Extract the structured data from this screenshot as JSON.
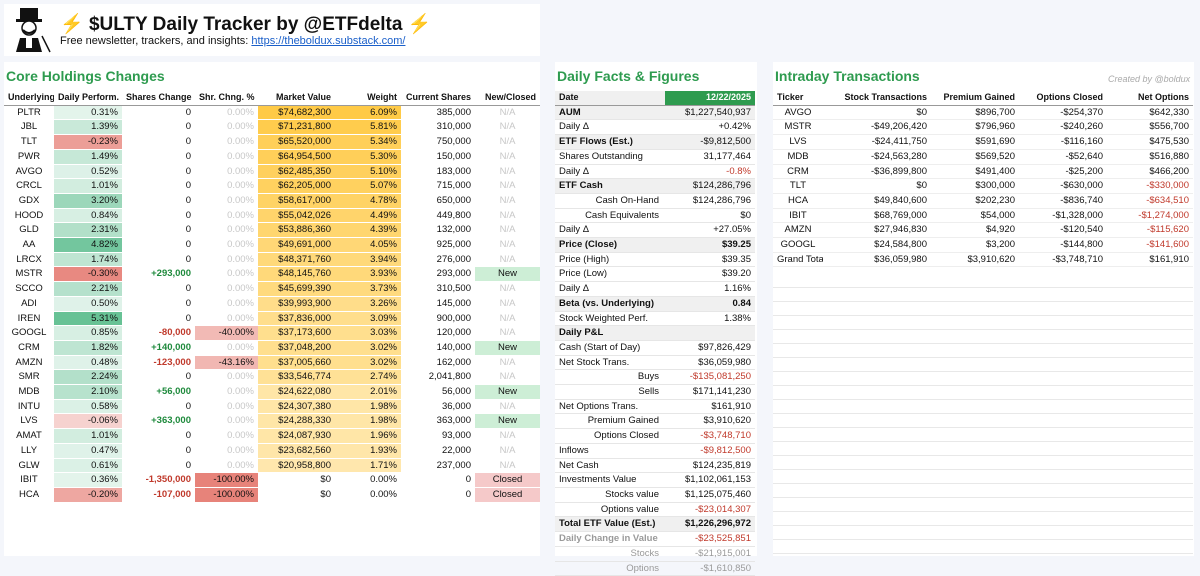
{
  "header": {
    "title": "$ULTY Daily Tracker by @ETFdelta",
    "subtitle_text": "Free newsletter, trackers, and insights:",
    "link": "https://theboldux.substack.com/"
  },
  "core": {
    "title": "Core Holdings Changes",
    "columns": [
      "Underlying",
      "Daily Perform.",
      "Shares Change",
      "Shr. Chng. %",
      "Market Value",
      "Weight",
      "Current Shares",
      "New/Closed"
    ],
    "rows": [
      {
        "ticker": "PLTR",
        "perf": "0.31%",
        "perf_val": 0.31,
        "shares_change": "0",
        "shr_pct": "0.00%",
        "mv": "$74,682,300",
        "weight": "6.09%",
        "weight_val": 6.09,
        "current": "385,000",
        "status": "N/A"
      },
      {
        "ticker": "JBL",
        "perf": "1.39%",
        "perf_val": 1.39,
        "shares_change": "0",
        "shr_pct": "0.00%",
        "mv": "$71,231,800",
        "weight": "5.81%",
        "weight_val": 5.81,
        "current": "310,000",
        "status": "N/A"
      },
      {
        "ticker": "TLT",
        "perf": "-0.23%",
        "perf_val": -0.23,
        "shares_change": "0",
        "shr_pct": "0.00%",
        "mv": "$65,520,000",
        "weight": "5.34%",
        "weight_val": 5.34,
        "current": "750,000",
        "status": "N/A"
      },
      {
        "ticker": "PWR",
        "perf": "1.49%",
        "perf_val": 1.49,
        "shares_change": "0",
        "shr_pct": "0.00%",
        "mv": "$64,954,500",
        "weight": "5.30%",
        "weight_val": 5.3,
        "current": "150,000",
        "status": "N/A"
      },
      {
        "ticker": "AVGO",
        "perf": "0.52%",
        "perf_val": 0.52,
        "shares_change": "0",
        "shr_pct": "0.00%",
        "mv": "$62,485,350",
        "weight": "5.10%",
        "weight_val": 5.1,
        "current": "183,000",
        "status": "N/A"
      },
      {
        "ticker": "CRCL",
        "perf": "1.01%",
        "perf_val": 1.01,
        "shares_change": "0",
        "shr_pct": "0.00%",
        "mv": "$62,205,000",
        "weight": "5.07%",
        "weight_val": 5.07,
        "current": "715,000",
        "status": "N/A"
      },
      {
        "ticker": "GDX",
        "perf": "3.20%",
        "perf_val": 3.2,
        "shares_change": "0",
        "shr_pct": "0.00%",
        "mv": "$58,617,000",
        "weight": "4.78%",
        "weight_val": 4.78,
        "current": "650,000",
        "status": "N/A"
      },
      {
        "ticker": "HOOD",
        "perf": "0.84%",
        "perf_val": 0.84,
        "shares_change": "0",
        "shr_pct": "0.00%",
        "mv": "$55,042,026",
        "weight": "4.49%",
        "weight_val": 4.49,
        "current": "449,800",
        "status": "N/A"
      },
      {
        "ticker": "GLD",
        "perf": "2.31%",
        "perf_val": 2.31,
        "shares_change": "0",
        "shr_pct": "0.00%",
        "mv": "$53,886,360",
        "weight": "4.39%",
        "weight_val": 4.39,
        "current": "132,000",
        "status": "N/A"
      },
      {
        "ticker": "AA",
        "perf": "4.82%",
        "perf_val": 4.82,
        "shares_change": "0",
        "shr_pct": "0.00%",
        "mv": "$49,691,000",
        "weight": "4.05%",
        "weight_val": 4.05,
        "current": "925,000",
        "status": "N/A"
      },
      {
        "ticker": "LRCX",
        "perf": "1.74%",
        "perf_val": 1.74,
        "shares_change": "0",
        "shr_pct": "0.00%",
        "mv": "$48,371,760",
        "weight": "3.94%",
        "weight_val": 3.94,
        "current": "276,000",
        "status": "N/A"
      },
      {
        "ticker": "MSTR",
        "perf": "-0.30%",
        "perf_val": -0.3,
        "shares_change": "+293,000",
        "shr_pct": "0.00%",
        "mv": "$48,145,760",
        "weight": "3.93%",
        "weight_val": 3.93,
        "current": "293,000",
        "status": "New"
      },
      {
        "ticker": "SCCO",
        "perf": "2.21%",
        "perf_val": 2.21,
        "shares_change": "0",
        "shr_pct": "0.00%",
        "mv": "$45,699,390",
        "weight": "3.73%",
        "weight_val": 3.73,
        "current": "310,500",
        "status": "N/A"
      },
      {
        "ticker": "ADI",
        "perf": "0.50%",
        "perf_val": 0.5,
        "shares_change": "0",
        "shr_pct": "0.00%",
        "mv": "$39,993,900",
        "weight": "3.26%",
        "weight_val": 3.26,
        "current": "145,000",
        "status": "N/A"
      },
      {
        "ticker": "IREN",
        "perf": "5.31%",
        "perf_val": 5.31,
        "shares_change": "0",
        "shr_pct": "0.00%",
        "mv": "$37,836,000",
        "weight": "3.09%",
        "weight_val": 3.09,
        "current": "900,000",
        "status": "N/A"
      },
      {
        "ticker": "GOOGL",
        "perf": "0.85%",
        "perf_val": 0.85,
        "shares_change": "-80,000",
        "shr_pct": "-40.00%",
        "shr_pct_val": -40.0,
        "mv": "$37,173,600",
        "weight": "3.03%",
        "weight_val": 3.03,
        "current": "120,000",
        "status": "N/A"
      },
      {
        "ticker": "CRM",
        "perf": "1.82%",
        "perf_val": 1.82,
        "shares_change": "+140,000",
        "shr_pct": "0.00%",
        "mv": "$37,048,200",
        "weight": "3.02%",
        "weight_val": 3.02,
        "current": "140,000",
        "status": "New"
      },
      {
        "ticker": "AMZN",
        "perf": "0.48%",
        "perf_val": 0.48,
        "shares_change": "-123,000",
        "shr_pct": "-43.16%",
        "shr_pct_val": -43.16,
        "mv": "$37,005,660",
        "weight": "3.02%",
        "weight_val": 3.02,
        "current": "162,000",
        "status": "N/A"
      },
      {
        "ticker": "SMR",
        "perf": "2.24%",
        "perf_val": 2.24,
        "shares_change": "0",
        "shr_pct": "0.00%",
        "mv": "$33,546,774",
        "weight": "2.74%",
        "weight_val": 2.74,
        "current": "2,041,800",
        "status": "N/A"
      },
      {
        "ticker": "MDB",
        "perf": "2.10%",
        "perf_val": 2.1,
        "shares_change": "+56,000",
        "shr_pct": "0.00%",
        "mv": "$24,622,080",
        "weight": "2.01%",
        "weight_val": 2.01,
        "current": "56,000",
        "status": "New"
      },
      {
        "ticker": "INTU",
        "perf": "0.58%",
        "perf_val": 0.58,
        "shares_change": "0",
        "shr_pct": "0.00%",
        "mv": "$24,307,380",
        "weight": "1.98%",
        "weight_val": 1.98,
        "current": "36,000",
        "status": "N/A"
      },
      {
        "ticker": "LVS",
        "perf": "-0.06%",
        "perf_val": -0.06,
        "shares_change": "+363,000",
        "shr_pct": "0.00%",
        "mv": "$24,288,330",
        "weight": "1.98%",
        "weight_val": 1.98,
        "current": "363,000",
        "status": "New"
      },
      {
        "ticker": "AMAT",
        "perf": "1.01%",
        "perf_val": 1.01,
        "shares_change": "0",
        "shr_pct": "0.00%",
        "mv": "$24,087,930",
        "weight": "1.96%",
        "weight_val": 1.96,
        "current": "93,000",
        "status": "N/A"
      },
      {
        "ticker": "LLY",
        "perf": "0.47%",
        "perf_val": 0.47,
        "shares_change": "0",
        "shr_pct": "0.00%",
        "mv": "$23,682,560",
        "weight": "1.93%",
        "weight_val": 1.93,
        "current": "22,000",
        "status": "N/A"
      },
      {
        "ticker": "GLW",
        "perf": "0.61%",
        "perf_val": 0.61,
        "shares_change": "0",
        "shr_pct": "0.00%",
        "mv": "$20,958,800",
        "weight": "1.71%",
        "weight_val": 1.71,
        "current": "237,000",
        "status": "N/A"
      },
      {
        "ticker": "IBIT",
        "perf": "0.36%",
        "perf_val": 0.36,
        "shares_change": "-1,350,000",
        "shr_pct": "-100.00%",
        "shr_pct_val": -100.0,
        "mv": "$0",
        "weight": "0.00%",
        "weight_val": 0,
        "current": "0",
        "status": "Closed"
      },
      {
        "ticker": "HCA",
        "perf": "-0.20%",
        "perf_val": -0.2,
        "shares_change": "-107,000",
        "shr_pct": "-100.00%",
        "shr_pct_val": -100.0,
        "mv": "$0",
        "weight": "0.00%",
        "weight_val": 0,
        "current": "0",
        "status": "Closed"
      }
    ]
  },
  "facts": {
    "title": "Daily Facts & Figures",
    "date_label": "Date",
    "date": "12/22/2025",
    "rows": [
      {
        "label": "AUM",
        "value": "$1,227,540,937",
        "style": "bold-shade"
      },
      {
        "label": "Daily Δ",
        "value": "+0.42%",
        "style": ""
      },
      {
        "label": "ETF Flows (Est.)",
        "value": "-$9,812,500",
        "style": "bold-shade"
      },
      {
        "label": "Shares Outstanding",
        "value": "31,177,464",
        "style": ""
      },
      {
        "label": "Daily Δ",
        "value": "-0.8%",
        "style": "red-val"
      },
      {
        "label": "ETF Cash",
        "value": "$124,286,796",
        "style": "bold-shade"
      },
      {
        "label": "Cash On-Hand",
        "value": "$124,286,796",
        "style": "indent"
      },
      {
        "label": "Cash Equivalents",
        "value": "$0",
        "style": "indent"
      },
      {
        "label": "Daily Δ",
        "value": "+27.05%",
        "style": ""
      },
      {
        "label": "Price (Close)",
        "value": "$39.25",
        "style": "bold-shade-both"
      },
      {
        "label": "Price (High)",
        "value": "$39.35",
        "style": ""
      },
      {
        "label": "Price (Low)",
        "value": "$39.20",
        "style": ""
      },
      {
        "label": "Daily Δ",
        "value": "1.16%",
        "style": ""
      },
      {
        "label": "Beta (vs. Underlying)",
        "value": "0.84",
        "style": "bold-shade-both"
      },
      {
        "label": "Stock Weighted Perf.",
        "value": "1.38%",
        "style": ""
      },
      {
        "label": "Daily P&L",
        "value": "",
        "style": "bold-shade"
      },
      {
        "label": "Cash (Start of Day)",
        "value": "$97,826,429",
        "style": ""
      },
      {
        "label": "Net Stock Trans.",
        "value": "$36,059,980",
        "style": ""
      },
      {
        "label": "Buys",
        "value": "-$135,081,250",
        "style": "indent-red"
      },
      {
        "label": "Sells",
        "value": "$171,141,230",
        "style": "indent"
      },
      {
        "label": "Net Options Trans.",
        "value": "$161,910",
        "style": ""
      },
      {
        "label": "Premium Gained",
        "value": "$3,910,620",
        "style": "indent"
      },
      {
        "label": "Options Closed",
        "value": "-$3,748,710",
        "style": "indent-red"
      },
      {
        "label": "Inflows",
        "value": "-$9,812,500",
        "style": "red-val"
      },
      {
        "label": "Net Cash",
        "value": "$124,235,819",
        "style": ""
      },
      {
        "label": "Investments Value",
        "value": "$1,102,061,153",
        "style": ""
      },
      {
        "label": "Stocks value",
        "value": "$1,125,075,460",
        "style": "indent"
      },
      {
        "label": "Options value",
        "value": "-$23,014,307",
        "style": "indent-red"
      },
      {
        "label": "Total ETF Value (Est.)",
        "value": "$1,226,296,972",
        "style": "bold-shade-both"
      },
      {
        "label": "Daily Change in Value",
        "value": "-$23,525,851",
        "style": "grey-bold-red"
      },
      {
        "label": "Stocks",
        "value": "-$21,915,001",
        "style": "indent-grey"
      },
      {
        "label": "Options",
        "value": "-$1,610,850",
        "style": "indent-grey"
      }
    ]
  },
  "intraday": {
    "title": "Intraday Transactions",
    "created_by": "Created by @boldux",
    "columns": [
      "Ticker",
      "Stock Transactions",
      "Premium Gained",
      "Options Closed",
      "Net Options"
    ],
    "rows": [
      {
        "ticker": "AVGO",
        "stock": "$0",
        "premium": "$896,700",
        "closed": "-$254,370",
        "net": "$642,330",
        "net_neg": false
      },
      {
        "ticker": "MSTR",
        "stock": "-$49,206,420",
        "premium": "$796,960",
        "closed": "-$240,260",
        "net": "$556,700",
        "net_neg": false
      },
      {
        "ticker": "LVS",
        "stock": "-$24,411,750",
        "premium": "$591,690",
        "closed": "-$116,160",
        "net": "$475,530",
        "net_neg": false
      },
      {
        "ticker": "MDB",
        "stock": "-$24,563,280",
        "premium": "$569,520",
        "closed": "-$52,640",
        "net": "$516,880",
        "net_neg": false
      },
      {
        "ticker": "CRM",
        "stock": "-$36,899,800",
        "premium": "$491,400",
        "closed": "-$25,200",
        "net": "$466,200",
        "net_neg": false
      },
      {
        "ticker": "TLT",
        "stock": "$0",
        "premium": "$300,000",
        "closed": "-$630,000",
        "net": "-$330,000",
        "net_neg": true
      },
      {
        "ticker": "HCA",
        "stock": "$49,840,600",
        "premium": "$202,230",
        "closed": "-$836,740",
        "net": "-$634,510",
        "net_neg": true
      },
      {
        "ticker": "IBIT",
        "stock": "$68,769,000",
        "premium": "$54,000",
        "closed": "-$1,328,000",
        "net": "-$1,274,000",
        "net_neg": true
      },
      {
        "ticker": "AMZN",
        "stock": "$27,946,830",
        "premium": "$4,920",
        "closed": "-$120,540",
        "net": "-$115,620",
        "net_neg": true
      },
      {
        "ticker": "GOOGL",
        "stock": "$24,584,800",
        "premium": "$3,200",
        "closed": "-$144,800",
        "net": "-$141,600",
        "net_neg": true
      }
    ],
    "total": {
      "label": "Grand Total",
      "stock": "$36,059,980",
      "premium": "$3,910,620",
      "closed": "-$3,748,710",
      "net": "$161,910"
    }
  }
}
